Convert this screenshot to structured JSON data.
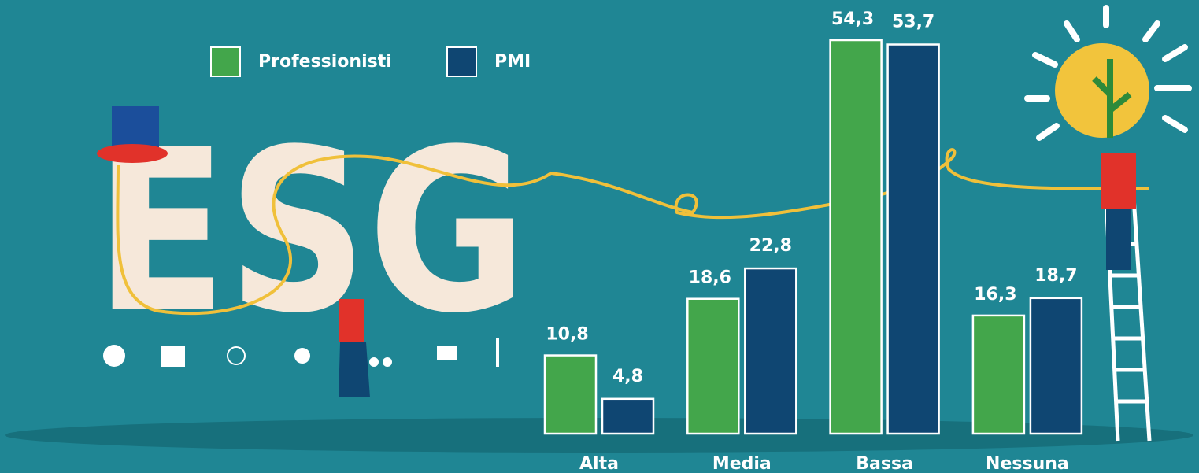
{
  "chart_data": {
    "type": "bar",
    "decoration_text": "ESG",
    "categories": [
      "Alta",
      "Media",
      "Bassa",
      "Nessuna"
    ],
    "series": [
      {
        "name": "Professionisti",
        "color": "#43a64b",
        "values": [
          10.8,
          18.6,
          54.3,
          16.3
        ],
        "value_labels": [
          "10,8",
          "18,6",
          "54,3",
          "16,3"
        ]
      },
      {
        "name": "PMI",
        "color": "#0f4672",
        "values": [
          4.8,
          22.8,
          53.7,
          18.7
        ],
        "value_labels": [
          "4,8",
          "22,8",
          "53,7",
          "18,7"
        ]
      }
    ]
  }
}
